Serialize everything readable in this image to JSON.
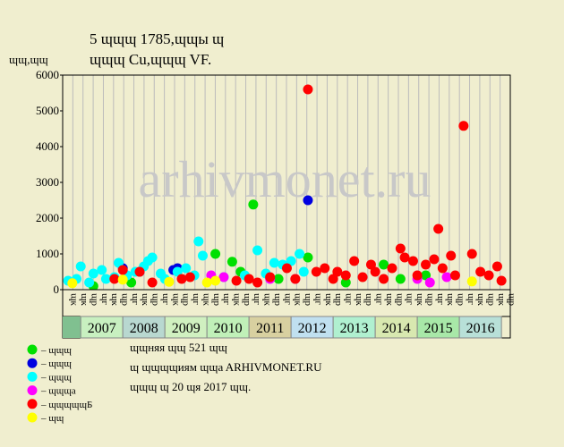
{
  "chart_data": {
    "type": "scatter",
    "title": "5 ɰɰɰ 1785,ɰɰы ɰ",
    "subtitle": "ɰɰɰ Cu,ɰɰɰ VF.",
    "ylabel": "ɰɰ,ɰɰ",
    "watermark": "arhivmonet.ru",
    "ylim": [
      0,
      6000
    ],
    "yticks": [
      0,
      1000,
      2000,
      3000,
      4000,
      5000,
      6000
    ],
    "xlim": [
      2006.57,
      2017.21
    ],
    "column_labels": [
      "ɰк",
      "ɰк",
      "ɰр",
      "ɰг",
      "ɰк",
      "ɰр",
      "ɰг",
      "ɰк",
      "ɰр",
      "ɰг",
      "ɰк",
      "ɰр",
      "ɰг",
      "ɰк",
      "ɰр",
      "ɰг",
      "ɰк",
      "ɰр",
      "ɰг",
      "ɰк",
      "ɰр",
      "ɰг",
      "ɰк",
      "ɰр",
      "ɰг",
      "ɰк",
      "ɰр",
      "ɰг",
      "ɰк",
      "ɰр",
      "ɰг",
      "ɰк",
      "ɰр",
      "ɰг",
      "ɰк",
      "ɰр",
      "ɰг",
      "ɰк",
      "ɰр",
      "ɰг",
      "ɰк",
      "ɰр",
      "ɰк",
      "ɰр"
    ],
    "years": [
      2007,
      2008,
      2009,
      2010,
      2011,
      2012,
      2013,
      2014,
      2015,
      2016
    ],
    "year_colors": [
      "#c8f0c0",
      "#b8d8d0",
      "#d0f0c0",
      "#c0f0b8",
      "#d8d0a0",
      "#c0e0f0",
      "#b0f0d0",
      "#d8e8b0",
      "#a8e8a8",
      "#b8e0d8"
    ],
    "series": [
      {
        "name": "– ɰɰɰ",
        "color": "#00e000",
        "x": [
          2007.3,
          2008.2,
          2010.2,
          2010.6,
          2010.8,
          2011.1,
          2011.7,
          2012.4,
          2013.3,
          2014.2,
          2014.6,
          2015.2
        ],
        "y": [
          100,
          200,
          1000,
          780,
          500,
          2380,
          300,
          900,
          200,
          700,
          300,
          400
        ]
      },
      {
        "name": "– ɰɰɰ",
        "color": "#0000e0",
        "x": [
          2008.0,
          2008.4,
          2009.2,
          2009.3,
          2012.4
        ],
        "y": [
          600,
          500,
          550,
          600,
          2500
        ]
      },
      {
        "name": "– ɰɰɰ",
        "color": "#00ffff",
        "x": [
          2006.7,
          2006.9,
          2007.0,
          2007.2,
          2007.3,
          2007.5,
          2007.6,
          2007.8,
          2007.9,
          2008.1,
          2008.3,
          2008.5,
          2008.6,
          2008.7,
          2008.9,
          2009.0,
          2009.3,
          2009.5,
          2009.7,
          2009.8,
          2009.9,
          2010.4,
          2010.9,
          2011.2,
          2011.4,
          2011.6,
          2011.8,
          2012.0,
          2012.2,
          2012.3
        ],
        "y": [
          250,
          300,
          650,
          200,
          450,
          550,
          300,
          350,
          750,
          400,
          500,
          650,
          800,
          900,
          450,
          300,
          500,
          600,
          400,
          1350,
          950,
          350,
          400,
          1100,
          450,
          750,
          700,
          800,
          1000,
          500
        ]
      },
      {
        "name": "– ɰɰɰa",
        "color": "#ff00ff",
        "x": [
          2010.1,
          2010.4,
          2011.5,
          2012.1,
          2015.0,
          2015.3,
          2015.7
        ],
        "y": [
          400,
          350,
          300,
          300,
          300,
          200,
          350
        ]
      },
      {
        "name": "– ɰɰɰɰɰБ",
        "color": "#ff0000",
        "x": [
          2007.8,
          2008.0,
          2008.4,
          2008.7,
          2009.4,
          2009.6,
          2010.7,
          2011.0,
          2011.2,
          2011.5,
          2011.9,
          2012.1,
          2012.4,
          2012.6,
          2012.8,
          2013.0,
          2013.1,
          2013.3,
          2013.5,
          2013.7,
          2013.9,
          2014.0,
          2014.2,
          2014.4,
          2014.6,
          2014.7,
          2014.9,
          2015.0,
          2015.2,
          2015.4,
          2015.5,
          2015.6,
          2015.8,
          2015.9,
          2016.1,
          2016.3,
          2016.5,
          2016.7,
          2016.9,
          2017.0
        ],
        "y": [
          300,
          550,
          500,
          200,
          300,
          350,
          250,
          300,
          200,
          350,
          600,
          300,
          5600,
          500,
          600,
          300,
          500,
          400,
          800,
          350,
          700,
          500,
          300,
          600,
          1150,
          900,
          800,
          400,
          700,
          850,
          1700,
          600,
          950,
          400,
          4580,
          1000,
          500,
          400,
          650,
          250
        ]
      },
      {
        "name": "– ɰɰ",
        "color": "#ffff00",
        "x": [
          2006.8,
          2008.0,
          2009.1,
          2010.0,
          2010.2,
          2016.3
        ],
        "y": [
          180,
          280,
          220,
          200,
          250,
          230
        ]
      }
    ],
    "notes": [
      "ɰɰняя ɰɰ 521 ɰɰ",
      "ɰ ɰɰɰɰиям ɰɰa ARHIVMONET.RU",
      "ɰɰɰ ɰ 20 ɰя 2017 ɰɰ."
    ]
  }
}
